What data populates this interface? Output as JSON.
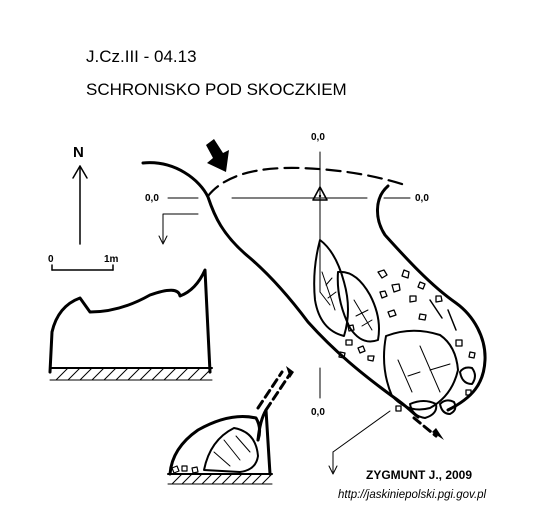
{
  "header": {
    "code": "J.Cz.III - 04.13",
    "name": "SCHRONISKO POD SKOCZKIEM"
  },
  "legend": {
    "north_label": "N",
    "scale_start": "0",
    "scale_end": "1m"
  },
  "datum": {
    "top": "0,0",
    "left": "0,0",
    "right": "0,0",
    "bottom": "0,0"
  },
  "credits": {
    "author": "ZYGMUNT J., 2009",
    "url": "http://jaskiniepolski.pgi.gov.pl"
  },
  "colors": {
    "ink": "#000000",
    "background": "#ffffff"
  },
  "icons": {
    "entrance_arrow": "entrance-arrow-icon",
    "datum_point": "datum-triangle-icon",
    "north_arrow": "north-arrow-icon"
  }
}
